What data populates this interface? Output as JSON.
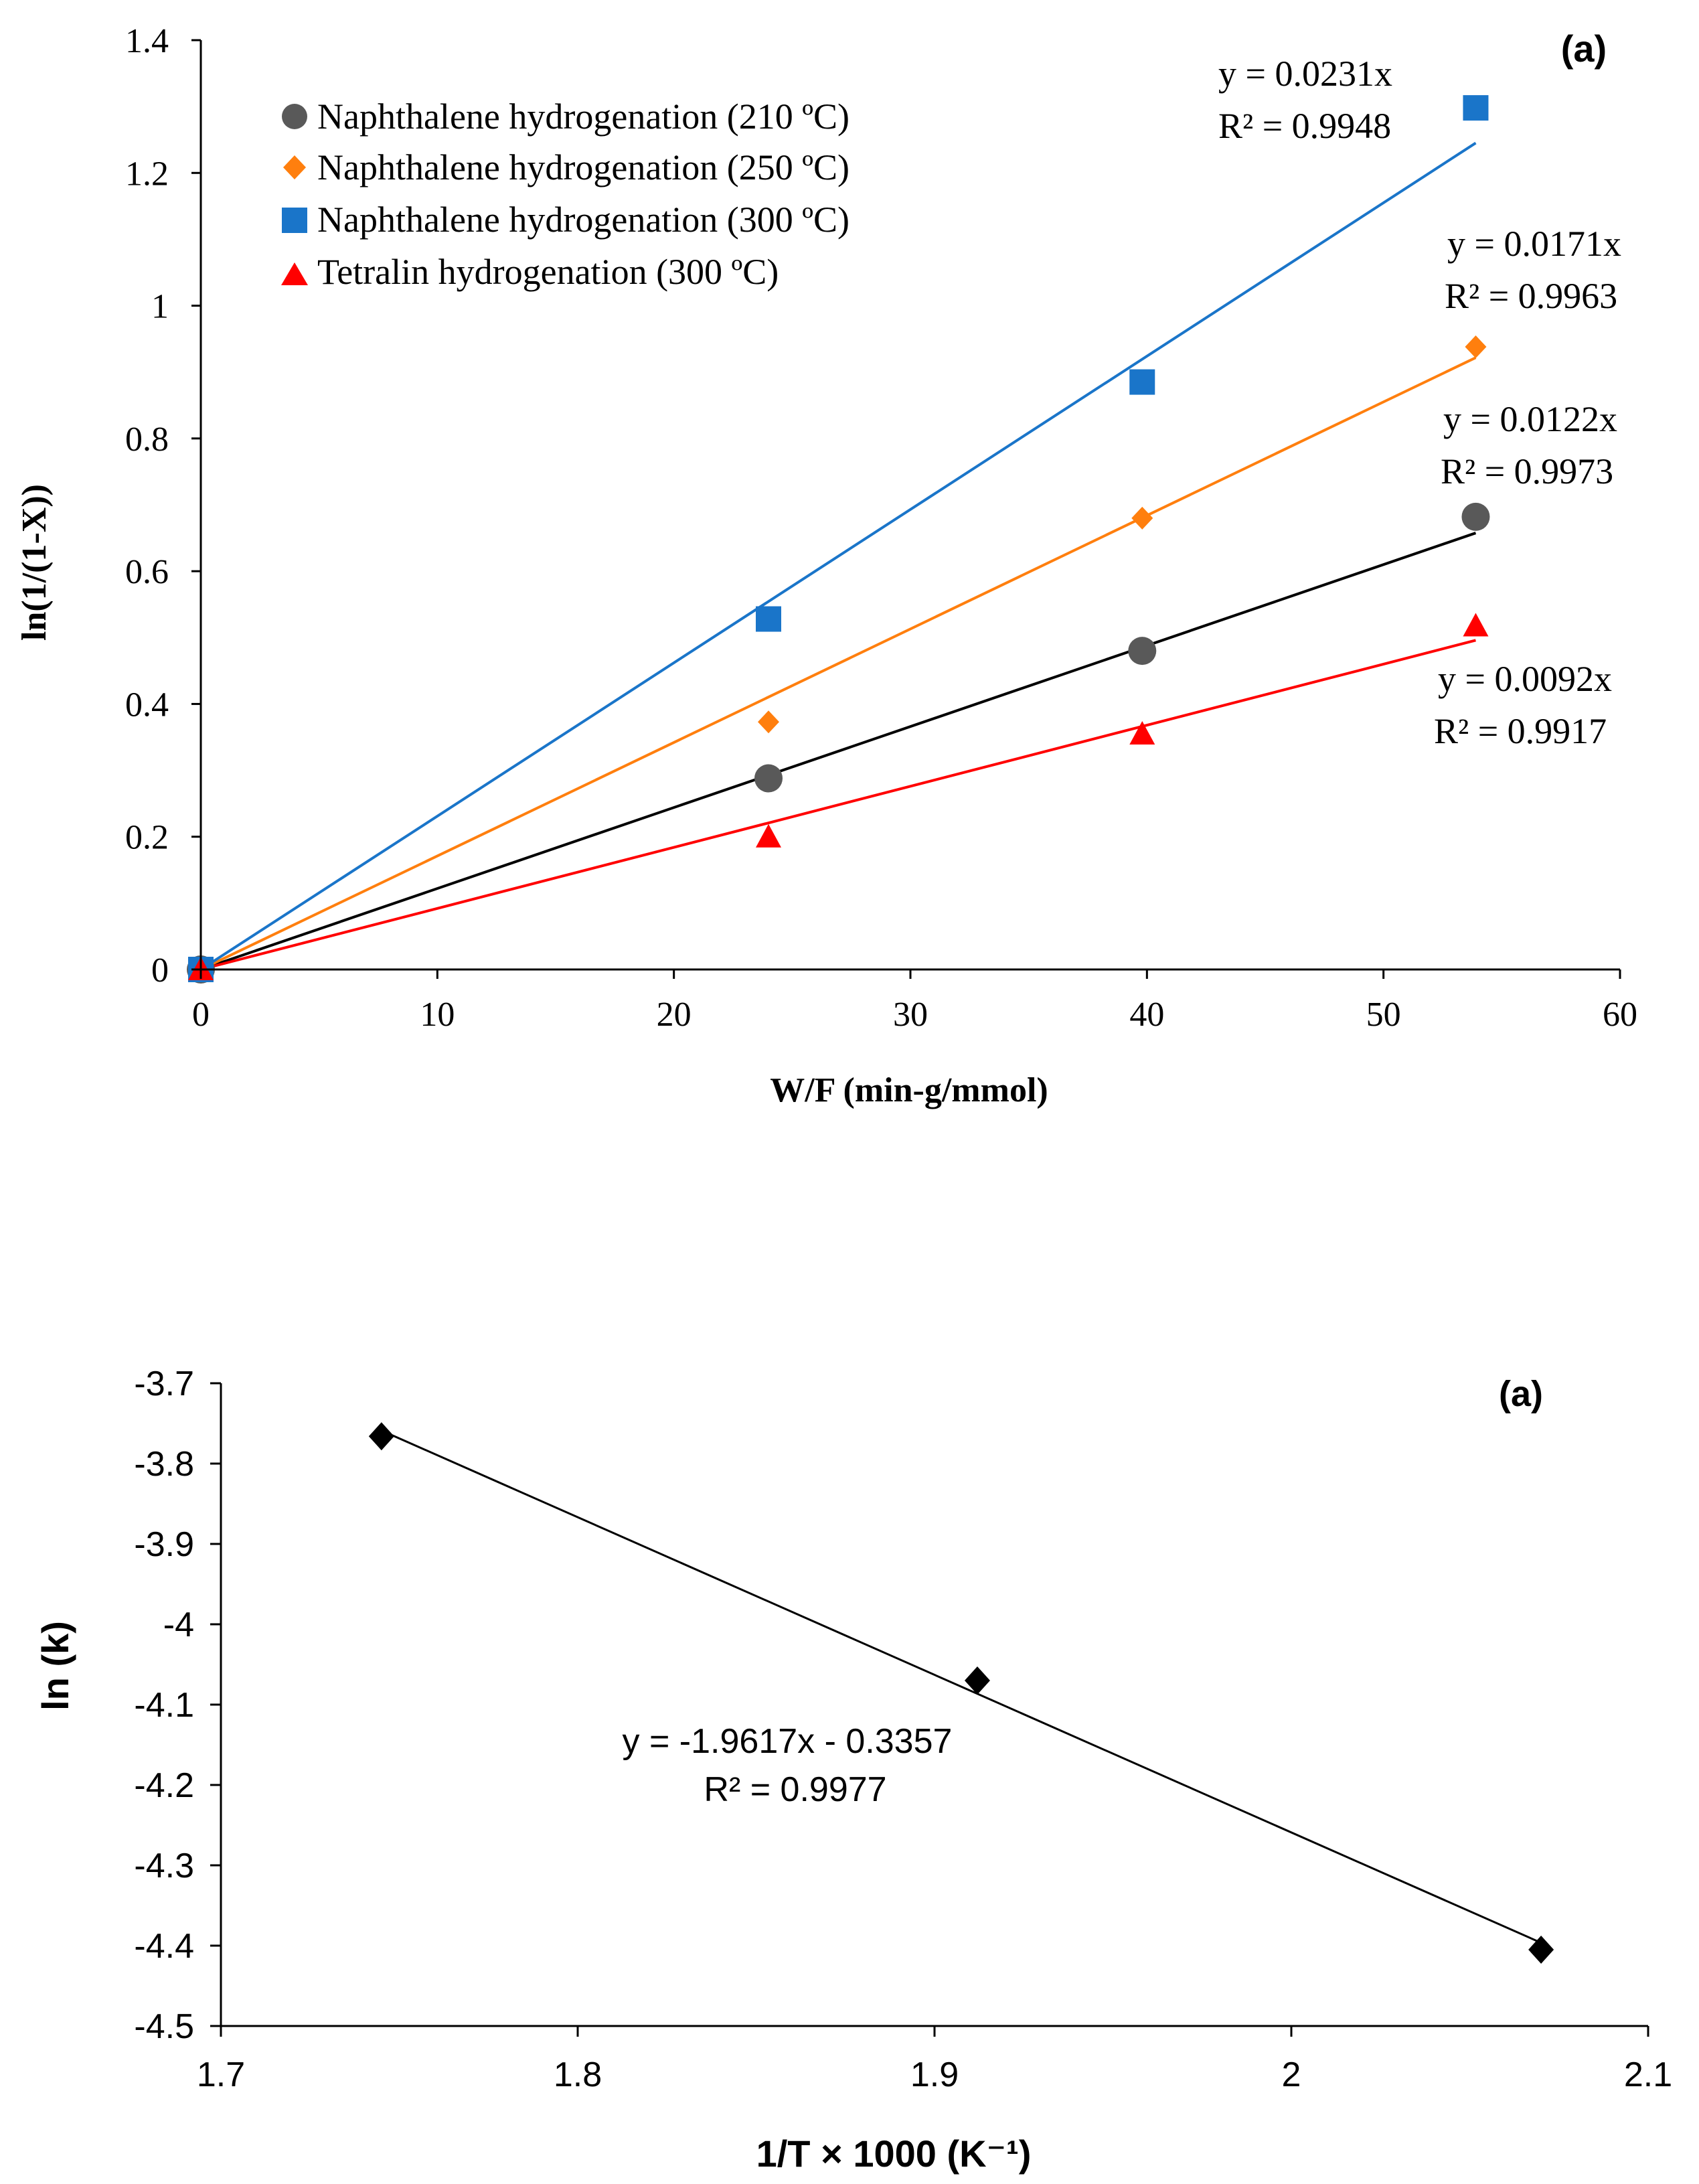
{
  "colors": {
    "background": "#ffffff",
    "axis": "#000000",
    "grey": "#595959",
    "orange": "#ff7f0e",
    "blue": "#1a75c9",
    "red": "#ff0000",
    "black": "#000000"
  },
  "chart_data": [
    {
      "type": "scatter",
      "panel_label": "(a)",
      "xlabel": "W/F (min-g/mmol)",
      "ylabel": "ln(1/(1-X))",
      "xlim": [
        0,
        60
      ],
      "ylim": [
        0,
        1.4
      ],
      "x_ticks": [
        0,
        10,
        20,
        30,
        40,
        50,
        60
      ],
      "y_ticks": [
        0,
        0.2,
        0.4,
        0.6,
        0.8,
        1,
        1.2,
        1.4
      ],
      "x_tick_labels": [
        "0",
        "10",
        "20",
        "30",
        "40",
        "50",
        "60"
      ],
      "y_tick_labels": [
        "0",
        "0.2",
        "0.4",
        "0.6",
        "0.8",
        "1",
        "1.2",
        "1.4"
      ],
      "legend_position": "top-left",
      "series": [
        {
          "name": "Naphthalene hydrogenation (210 ºC)",
          "marker": "circle",
          "color": "#595959",
          "trend_color": "#000000",
          "x": [
            0,
            24,
            39.8,
            53.9
          ],
          "y": [
            0,
            0.288,
            0.48,
            0.682
          ],
          "slope": 0.0122,
          "equation": "y = 0.0122x",
          "r2": "R² = 0.9973"
        },
        {
          "name": "Naphthalene hydrogenation (250 ºC)",
          "marker": "diamond",
          "color": "#ff7f0e",
          "trend_color": "#ff7f0e",
          "x": [
            0,
            24,
            39.8,
            53.9
          ],
          "y": [
            0,
            0.373,
            0.68,
            0.938
          ],
          "slope": 0.0171,
          "equation": "y = 0.0171x",
          "r2": "R² = 0.9963"
        },
        {
          "name": "Naphthalene hydrogenation (300 ºC)",
          "marker": "square",
          "color": "#1a75c9",
          "trend_color": "#1a75c9",
          "x": [
            0,
            24,
            39.8,
            53.9
          ],
          "y": [
            0,
            0.528,
            0.885,
            1.298
          ],
          "slope": 0.0231,
          "equation": "y = 0.0231x",
          "r2": "R² = 0.9948"
        },
        {
          "name": "Tetralin hydrogenation (300 ºC)",
          "marker": "triangle",
          "color": "#ff0000",
          "trend_color": "#ff0000",
          "x": [
            0,
            24,
            39.8,
            53.9
          ],
          "y": [
            0,
            0.2,
            0.355,
            0.518
          ],
          "slope": 0.0092,
          "equation": "y = 0.0092x",
          "r2": "R² = 0.9917"
        }
      ]
    },
    {
      "type": "scatter",
      "panel_label": "(a)",
      "xlabel": "1/T × 1000 (K⁻¹)",
      "ylabel": "ln (k)",
      "xlim": [
        1.7,
        2.1
      ],
      "ylim": [
        -4.5,
        -3.7
      ],
      "x_ticks": [
        1.7,
        1.8,
        1.9,
        2.0,
        2.1
      ],
      "y_ticks": [
        -3.7,
        -3.8,
        -3.9,
        -4.0,
        -4.1,
        -4.2,
        -4.3,
        -4.4,
        -4.5
      ],
      "x_tick_labels": [
        "1.7",
        "1.8",
        "1.9",
        "2",
        "2.1"
      ],
      "y_tick_labels": [
        "-3.7",
        "-3.8",
        "-3.9",
        "-4",
        "-4.1",
        "-4.2",
        "-4.3",
        "-4.4",
        "-4.5"
      ],
      "series": [
        {
          "name": "ln(k)",
          "marker": "diamond",
          "color": "#000000",
          "x": [
            1.745,
            1.912,
            2.07
          ],
          "y": [
            -3.766,
            -4.07,
            -4.405
          ],
          "slope": -1.9617,
          "intercept": -0.3357,
          "equation": "y = -1.9617x - 0.3357",
          "r2": "R² = 0.9977"
        }
      ]
    }
  ]
}
